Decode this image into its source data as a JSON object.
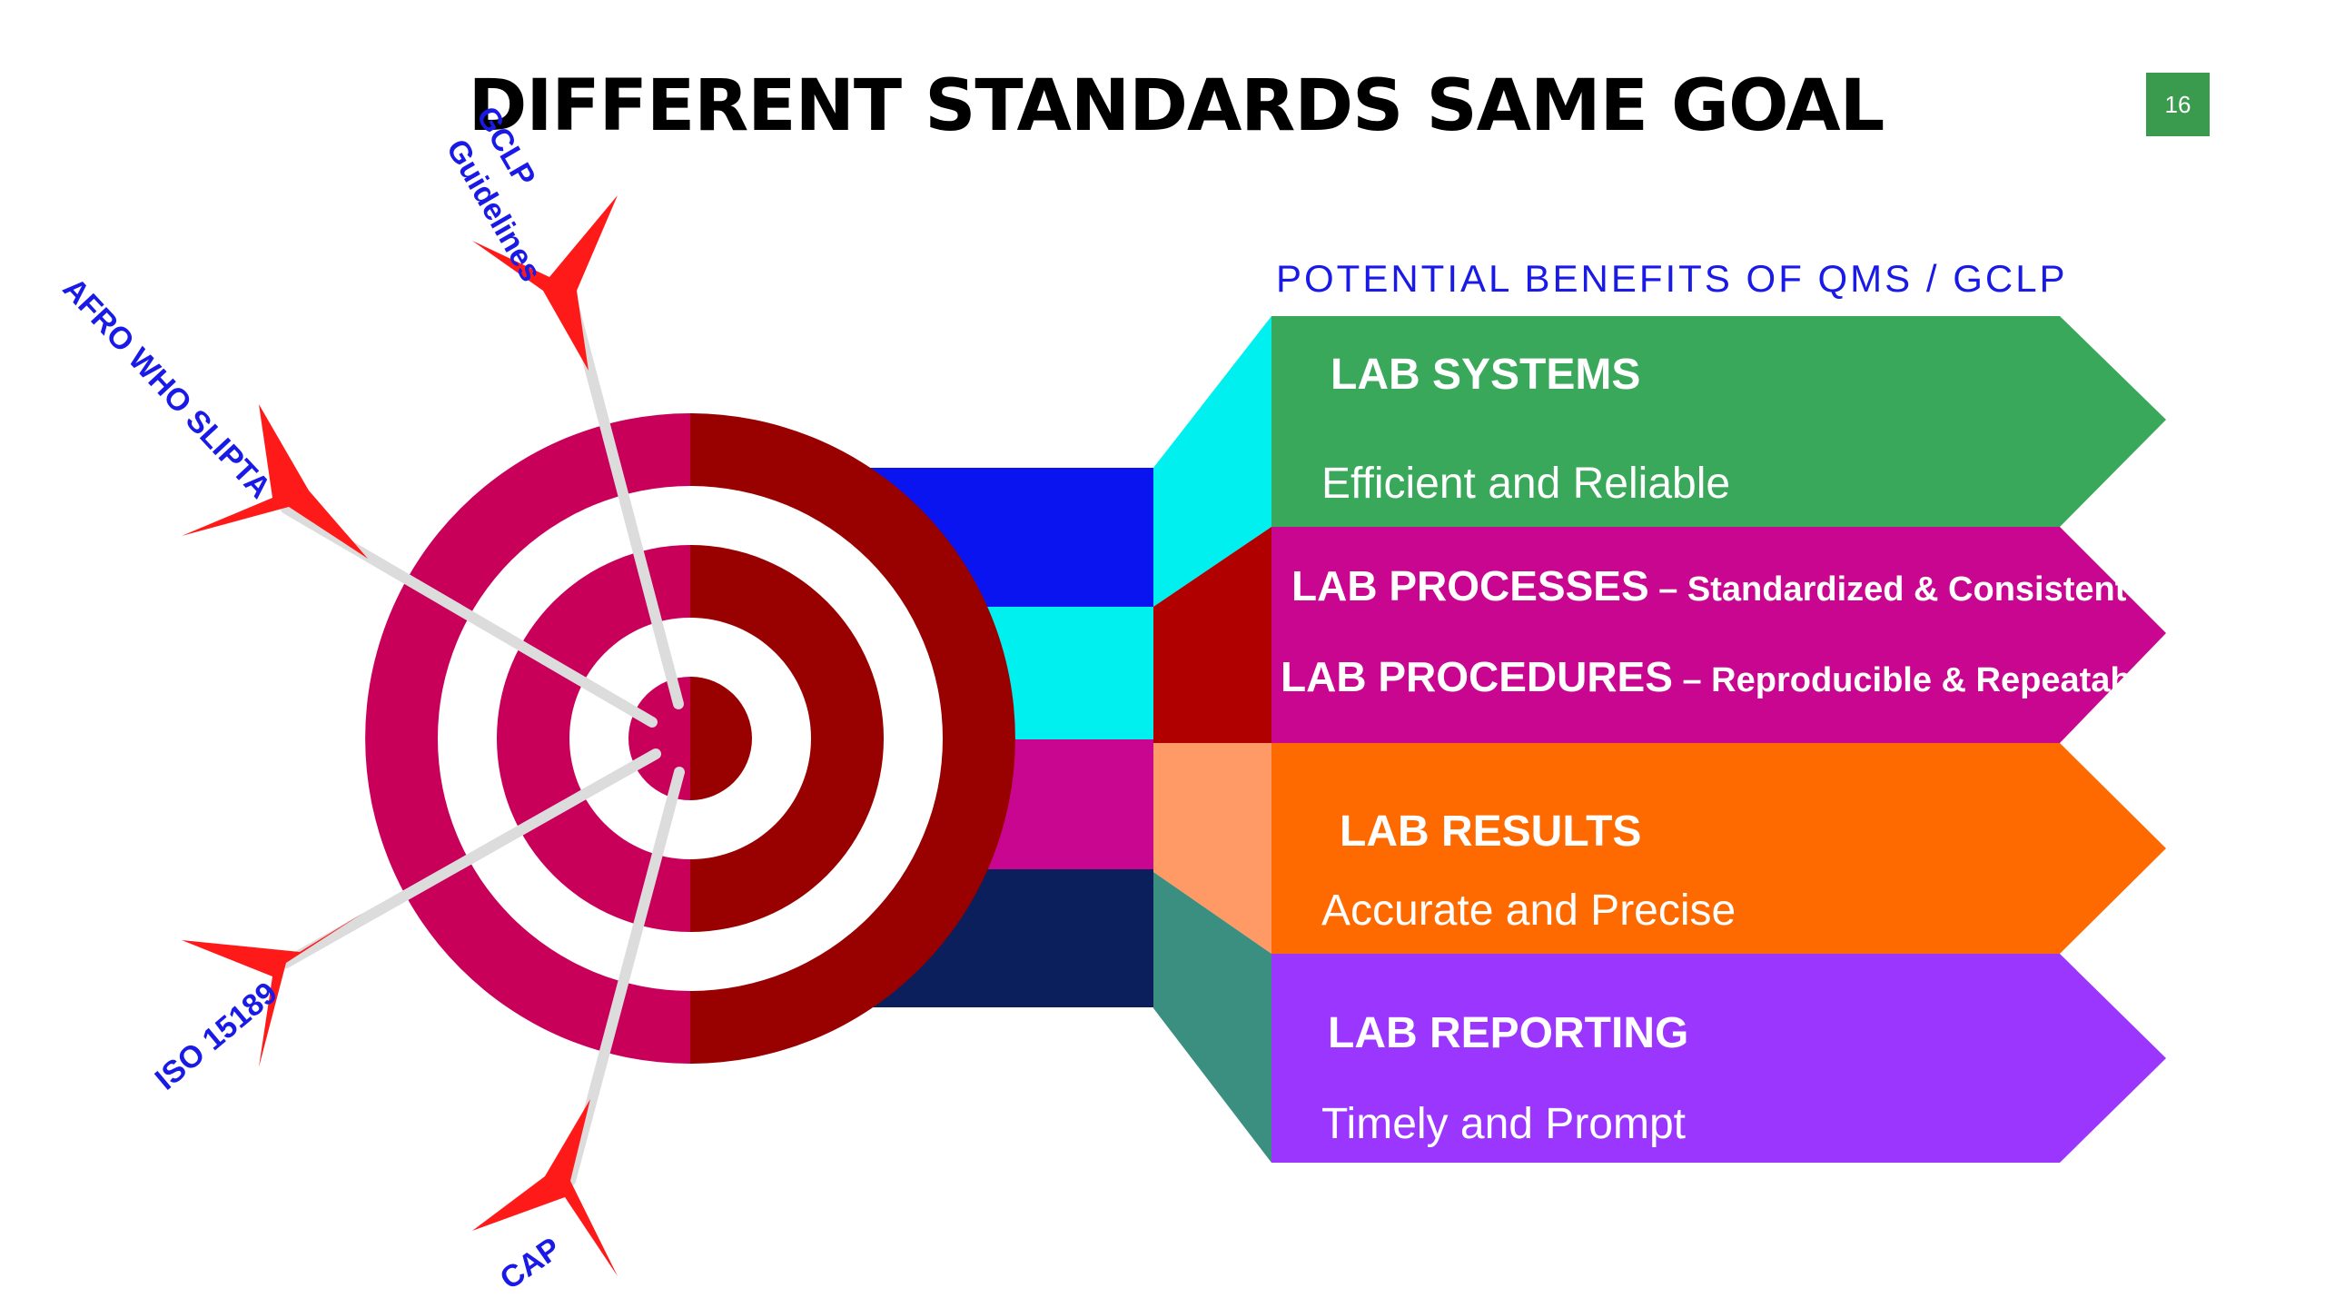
{
  "slide": {
    "title": "DIFFERENT STANDARDS SAME GOAL",
    "page_number": "16"
  },
  "benefits": {
    "heading": "POTENTIAL BENEFITS OF QMS / GCLP",
    "bands": [
      {
        "id": "systems",
        "title": "LAB SYSTEMS",
        "subtitle": "Efficient  and Reliable",
        "color": "#3aa85a",
        "side_color": "#00f0f0"
      },
      {
        "id": "processes",
        "title": "LAB PROCESSES",
        "title_rest": " – Standardized & Consistent",
        "title2": "LAB PROCEDURES",
        "title2_rest": " – Reproducible & Repeatable",
        "color": "#c8068f",
        "side_color": "#b00000"
      },
      {
        "id": "results",
        "title": "LAB RESULTS",
        "subtitle": "Accurate and Precise",
        "color": "#ff6a00",
        "side_color": "#ff9966"
      },
      {
        "id": "reporting",
        "title": "LAB REPORTING",
        "subtitle": "Timely and Prompt",
        "color": "#9b36ff",
        "side_color": "#3a8f80"
      }
    ]
  },
  "standards": {
    "arrows": [
      {
        "id": "gclp",
        "label_line1": "GCLP",
        "label_line2": "Guidelines"
      },
      {
        "id": "slipta",
        "label": "AFRO WHO SLIPTA"
      },
      {
        "id": "iso",
        "label": "ISO 15189"
      },
      {
        "id": "cap",
        "label": "CAP"
      }
    ]
  },
  "colors": {
    "ring_outer": "#c8005a",
    "ring_dark": "#990000",
    "connector_blue": "#0a14f0",
    "connector_cyan": "#00f0f0",
    "connector_magenta": "#c8068f",
    "connector_navy": "#0a1f5c",
    "arrow_red": "#ff1a1a",
    "shaft": "#dcdcdc"
  }
}
